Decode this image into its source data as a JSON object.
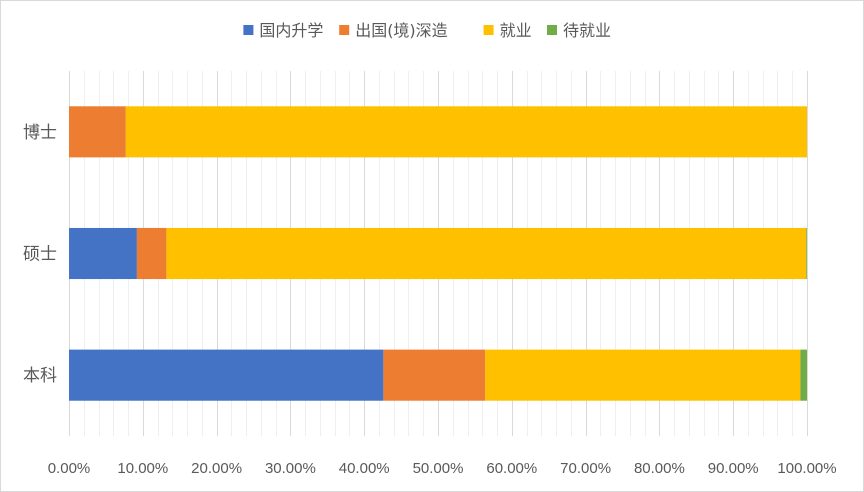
{
  "chart_data": {
    "type": "bar",
    "orientation": "horizontal",
    "stacked": "percent",
    "categories": [
      "本科",
      "硕士",
      "博士"
    ],
    "series": [
      {
        "name": "国内升学",
        "color": "#4472C4",
        "values": [
          42.6,
          9.2,
          0.0
        ]
      },
      {
        "name": "出国(境)深造",
        "color": "#ED7D31",
        "values": [
          13.8,
          4.0,
          7.7
        ]
      },
      {
        "name": "就业",
        "color": "#FFC000",
        "values": [
          42.7,
          86.7,
          92.3
        ]
      },
      {
        "name": "待就业",
        "color": "#70AD47",
        "values": [
          0.9,
          0.1,
          0.0
        ]
      }
    ],
    "xlim": [
      0,
      100
    ],
    "x_ticks": [
      "0.00%",
      "10.00%",
      "20.00%",
      "30.00%",
      "40.00%",
      "50.00%",
      "60.00%",
      "70.00%",
      "80.00%",
      "90.00%",
      "100.00%"
    ],
    "grid": "vertical major and minor",
    "legend_position": "top"
  }
}
